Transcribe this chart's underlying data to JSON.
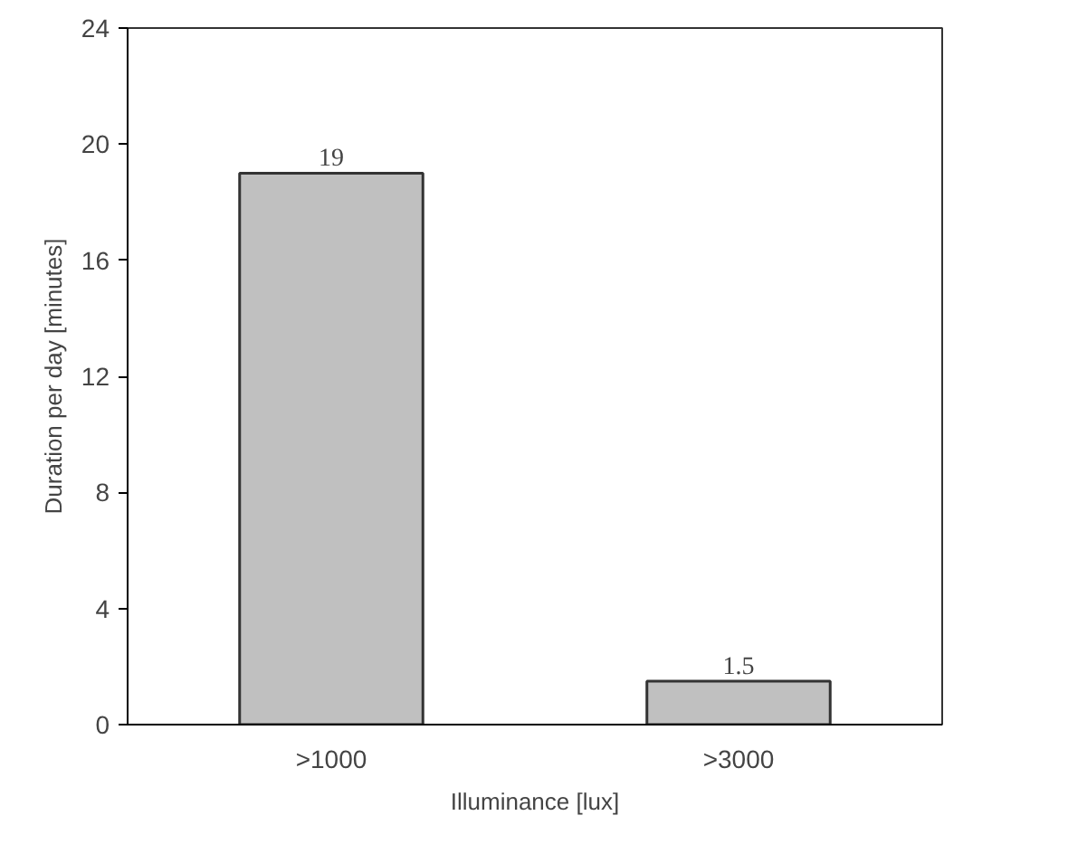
{
  "chart_data": {
    "type": "bar",
    "xlabel": "Illuminance [lux]",
    "ylabel": "Duration per day [minutes]",
    "categories": [
      ">1000",
      ">3000"
    ],
    "values": [
      19,
      1.5
    ],
    "color": "#c0c0c0",
    "ylim": [
      0,
      24
    ],
    "yticks": [
      0,
      4,
      8,
      12,
      16,
      20,
      24
    ],
    "data_labels": true,
    "grid": false
  }
}
